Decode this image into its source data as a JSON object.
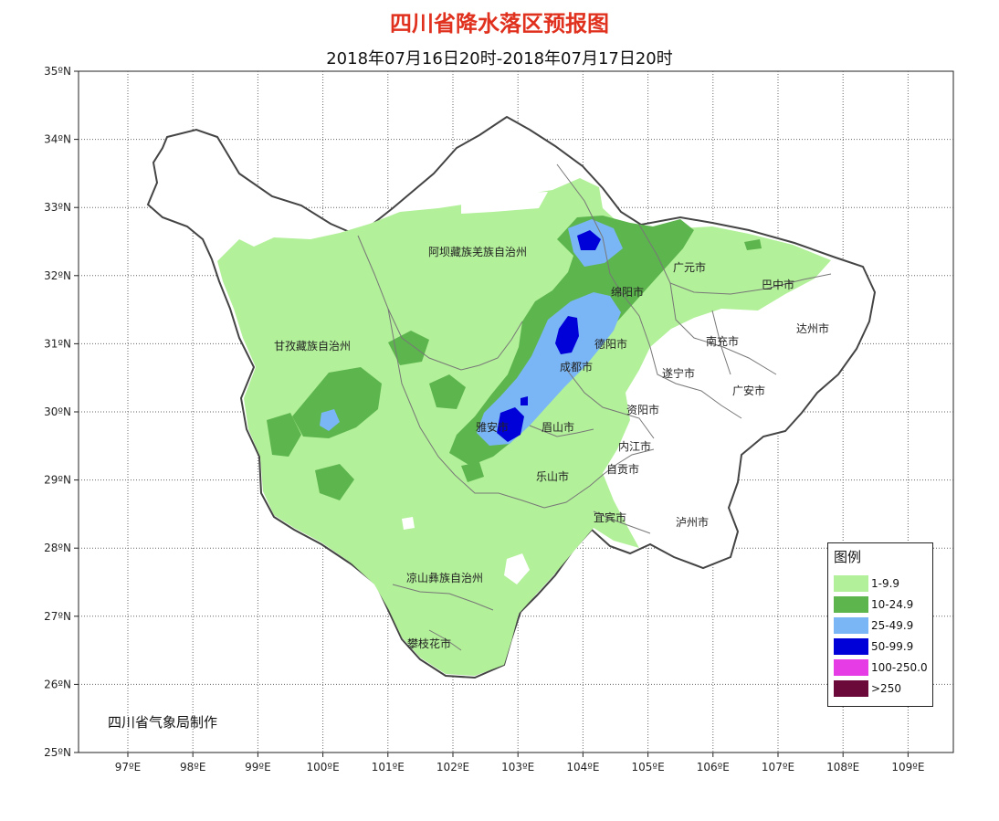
{
  "header": {
    "title": "四川省降水落区预报图",
    "subtitle": "2018年07月16日20时-2018年07月17日20时"
  },
  "axes": {
    "lat_labels": [
      "35ºN",
      "34ºN",
      "33ºN",
      "32ºN",
      "31ºN",
      "30ºN",
      "29ºN",
      "28ºN",
      "27ºN",
      "26ºN",
      "25ºN"
    ],
    "lon_labels": [
      "97ºE",
      "98ºE",
      "99ºE",
      "100ºE",
      "101ºE",
      "102ºE",
      "103ºE",
      "104ºE",
      "105ºE",
      "106ºE",
      "107ºE",
      "108ºE",
      "109ºE"
    ]
  },
  "cities": [
    {
      "name": "阿坝藏族羌族自治州"
    },
    {
      "name": "广元市"
    },
    {
      "name": "巴中市"
    },
    {
      "name": "绵阳市"
    },
    {
      "name": "达州市"
    },
    {
      "name": "南充市"
    },
    {
      "name": "德阳市"
    },
    {
      "name": "甘孜藏族自治州"
    },
    {
      "name": "成都市"
    },
    {
      "name": "遂宁市"
    },
    {
      "name": "广安市"
    },
    {
      "name": "资阳市"
    },
    {
      "name": "雅安市"
    },
    {
      "name": "眉山市"
    },
    {
      "name": "内江市"
    },
    {
      "name": "自贡市"
    },
    {
      "name": "乐山市"
    },
    {
      "name": "宜宾市"
    },
    {
      "name": "泸州市"
    },
    {
      "name": "凉山彝族自治州"
    },
    {
      "name": "攀枝花市"
    }
  ],
  "legend": {
    "title": "图例",
    "items": [
      {
        "label": "1-9.9",
        "color": "#b3f09a"
      },
      {
        "label": "10-24.9",
        "color": "#5db54e"
      },
      {
        "label": "25-49.9",
        "color": "#7ab6f5"
      },
      {
        "label": "50-99.9",
        "color": "#0000d8"
      },
      {
        "label": "100-250.0",
        "color": "#e63ce6"
      },
      {
        "label": ">250",
        "color": "#6b0a3a"
      }
    ]
  },
  "credit": "四川省气象局制作"
}
